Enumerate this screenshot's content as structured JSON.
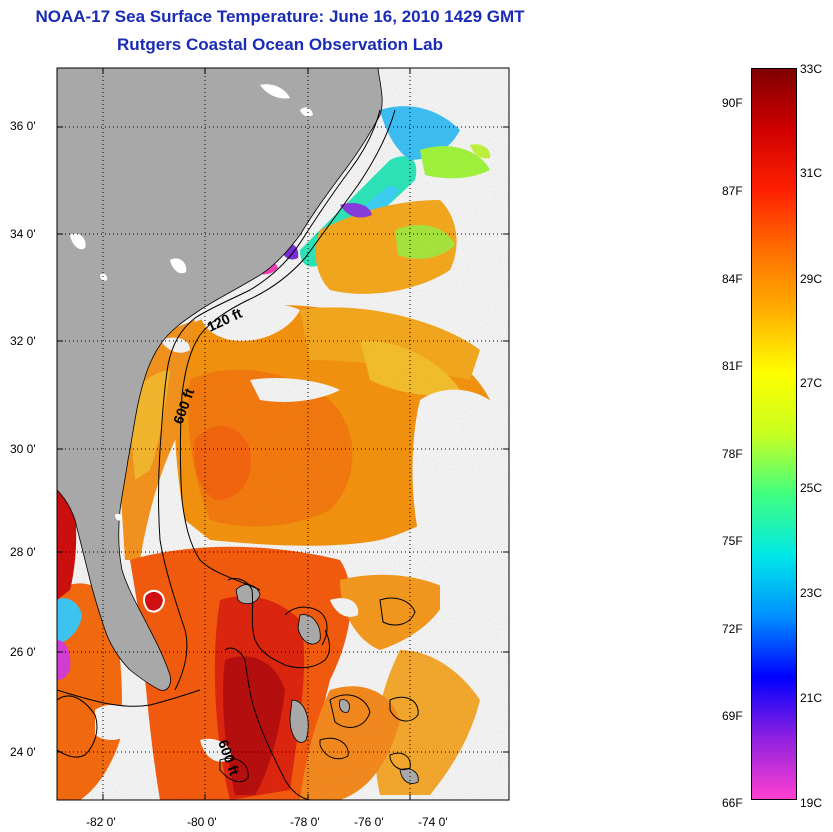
{
  "header": {
    "title": "NOAA-17 Sea Surface Temperature:  June 16, 2010 1429 GMT",
    "subtitle": "Rutgers Coastal Ocean Observation Lab"
  },
  "map": {
    "lat_labels": [
      "36 0'",
      "34 0'",
      "32 0'",
      "30 0'",
      "28 0'",
      "26 0'",
      "24 0'"
    ],
    "lon_labels": [
      "-82 0'",
      "-80 0'",
      "-78 0'",
      "-76 0'",
      "-74 0'"
    ],
    "depth_labels": [
      "120 ft",
      "600 ft",
      "600 ft"
    ],
    "colors": {
      "land": "#a8a8a8",
      "cloud": "#ffffff"
    }
  },
  "colorbar": {
    "celsius_labels": [
      "33C",
      "31C",
      "29C",
      "27C",
      "25C",
      "23C",
      "21C",
      "19C"
    ],
    "fahrenheit_labels": [
      "90F",
      "87F",
      "84F",
      "81F",
      "78F",
      "75F",
      "72F",
      "69F",
      "66F"
    ],
    "range_c": [
      19,
      33
    ],
    "colors": [
      "#ff40d0",
      "#9020e0",
      "#0000ff",
      "#0090ff",
      "#00e8e8",
      "#40ff80",
      "#c8ff20",
      "#ffff00",
      "#ffb000",
      "#ff7000",
      "#ff2000",
      "#d00000",
      "#800000"
    ]
  }
}
